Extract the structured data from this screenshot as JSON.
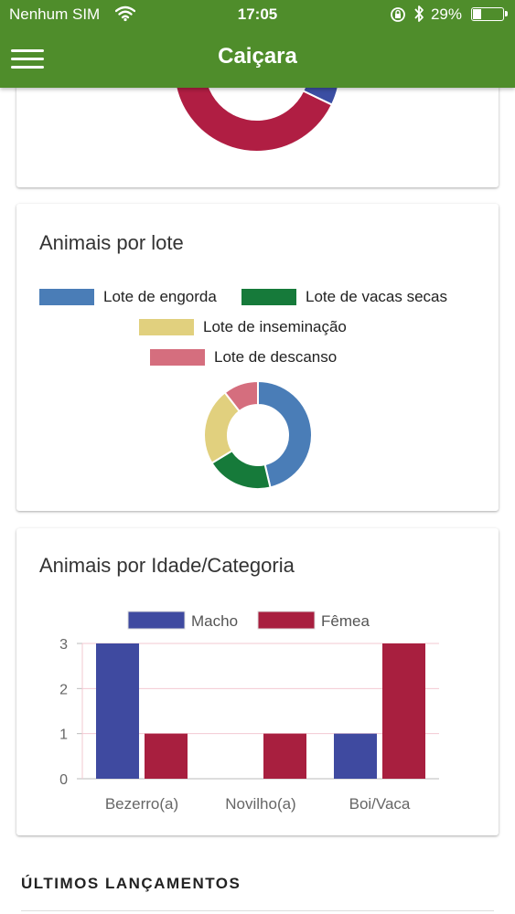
{
  "status_bar": {
    "carrier": "Nenhum SIM",
    "time": "17:05",
    "battery": "29%",
    "battery_level": 0.29
  },
  "header": {
    "title": "Caiçara",
    "menu_icon": "hamburger-menu-icon",
    "color": "#4f8d2b"
  },
  "card_top": {
    "segments": [
      {
        "color": "#b01e43",
        "value": 65
      },
      {
        "color": "#3b4ea3",
        "value": 35
      }
    ]
  },
  "card_lote": {
    "title": "Animais por lote",
    "legend": [
      {
        "label": "Lote de engorda",
        "color": "#4a7db7"
      },
      {
        "label": "Lote de vacas secas",
        "color": "#167a3a"
      },
      {
        "label": "Lote de inseminação",
        "color": "#e1d07e"
      },
      {
        "label": "Lote de descanso",
        "color": "#d56e7e"
      }
    ]
  },
  "card_idade": {
    "title": "Animais por Idade/Categoria"
  },
  "chart_data": [
    {
      "type": "pie",
      "title": "Animais por lote",
      "categories": [
        "Lote de engorda",
        "Lote de vacas secas",
        "Lote de inseminação",
        "Lote de descanso"
      ],
      "values": [
        44,
        19,
        22,
        10
      ],
      "colors": [
        "#4a7db7",
        "#167a3a",
        "#e1d07e",
        "#d56e7e"
      ],
      "donut": true,
      "legend_position": "top"
    },
    {
      "type": "bar",
      "title": "Animais por Idade/Categoria",
      "categories": [
        "Bezerro(a)",
        "Novilho(a)",
        "Boi/Vaca"
      ],
      "series": [
        {
          "name": "Macho",
          "values": [
            3,
            0,
            1
          ],
          "color": "#3f4aa0"
        },
        {
          "name": "Fêmea",
          "values": [
            1,
            1,
            3
          ],
          "color": "#a81f3f"
        }
      ],
      "ylim": [
        0,
        3
      ],
      "yticks": [
        "0",
        "1",
        "2",
        "3"
      ],
      "grid": true,
      "legend_position": "top"
    }
  ],
  "section": {
    "heading": "ÚLTIMOS LANÇAMENTOS"
  }
}
